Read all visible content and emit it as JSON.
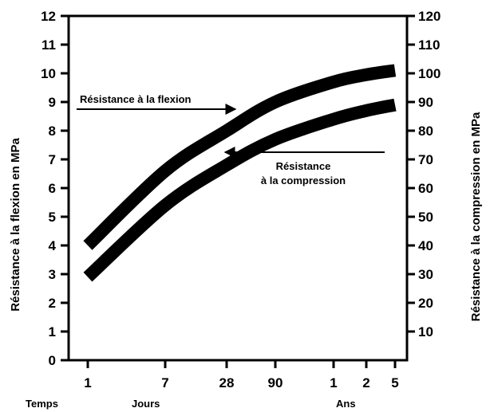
{
  "chart_data": {
    "type": "line",
    "x_scale": "log",
    "x_ticks": [
      {
        "label": "1",
        "days": 1
      },
      {
        "label": "7",
        "days": 7
      },
      {
        "label": "28",
        "days": 28
      },
      {
        "label": "90",
        "days": 90
      },
      {
        "label": "1",
        "days": 365
      },
      {
        "label": "2",
        "days": 730
      },
      {
        "label": "5",
        "days": 1825
      }
    ],
    "x_group_labels": {
      "left": "Temps",
      "middle": "Jours",
      "right": "Ans"
    },
    "y_left": {
      "label": "Résistance à la flexion en MPa",
      "ticks": [
        0,
        1,
        2,
        3,
        4,
        5,
        6,
        7,
        8,
        9,
        10,
        11,
        12
      ],
      "range": [
        0,
        12
      ]
    },
    "y_right": {
      "label": "Résistance à la compression en MPa",
      "ticks": [
        10,
        20,
        30,
        40,
        50,
        60,
        70,
        80,
        90,
        100,
        110,
        120
      ],
      "range": [
        0,
        120
      ]
    },
    "series": [
      {
        "name": "Résistance à la flexion",
        "axis": "left",
        "points": [
          {
            "days": 1,
            "value": 4.0
          },
          {
            "days": 7,
            "value": 6.6
          },
          {
            "days": 28,
            "value": 8.0
          },
          {
            "days": 90,
            "value": 9.0
          },
          {
            "days": 365,
            "value": 9.7
          },
          {
            "days": 730,
            "value": 9.95
          },
          {
            "days": 1825,
            "value": 10.1
          }
        ]
      },
      {
        "name": "Résistance à la compression",
        "axis": "right",
        "points": [
          {
            "days": 1,
            "value": 29
          },
          {
            "days": 7,
            "value": 54
          },
          {
            "days": 28,
            "value": 68
          },
          {
            "days": 90,
            "value": 77
          },
          {
            "days": 365,
            "value": 84
          },
          {
            "days": 730,
            "value": 87
          },
          {
            "days": 1825,
            "value": 89
          }
        ]
      }
    ],
    "annotations": [
      {
        "series": "Résistance à la flexion",
        "lines": [
          "Résistance à la flexion"
        ],
        "arrow": "right"
      },
      {
        "series": "Résistance à la compression",
        "lines": [
          "Résistance",
          "à la compression"
        ],
        "arrow": "left"
      }
    ],
    "grid": false,
    "legend": "none"
  }
}
